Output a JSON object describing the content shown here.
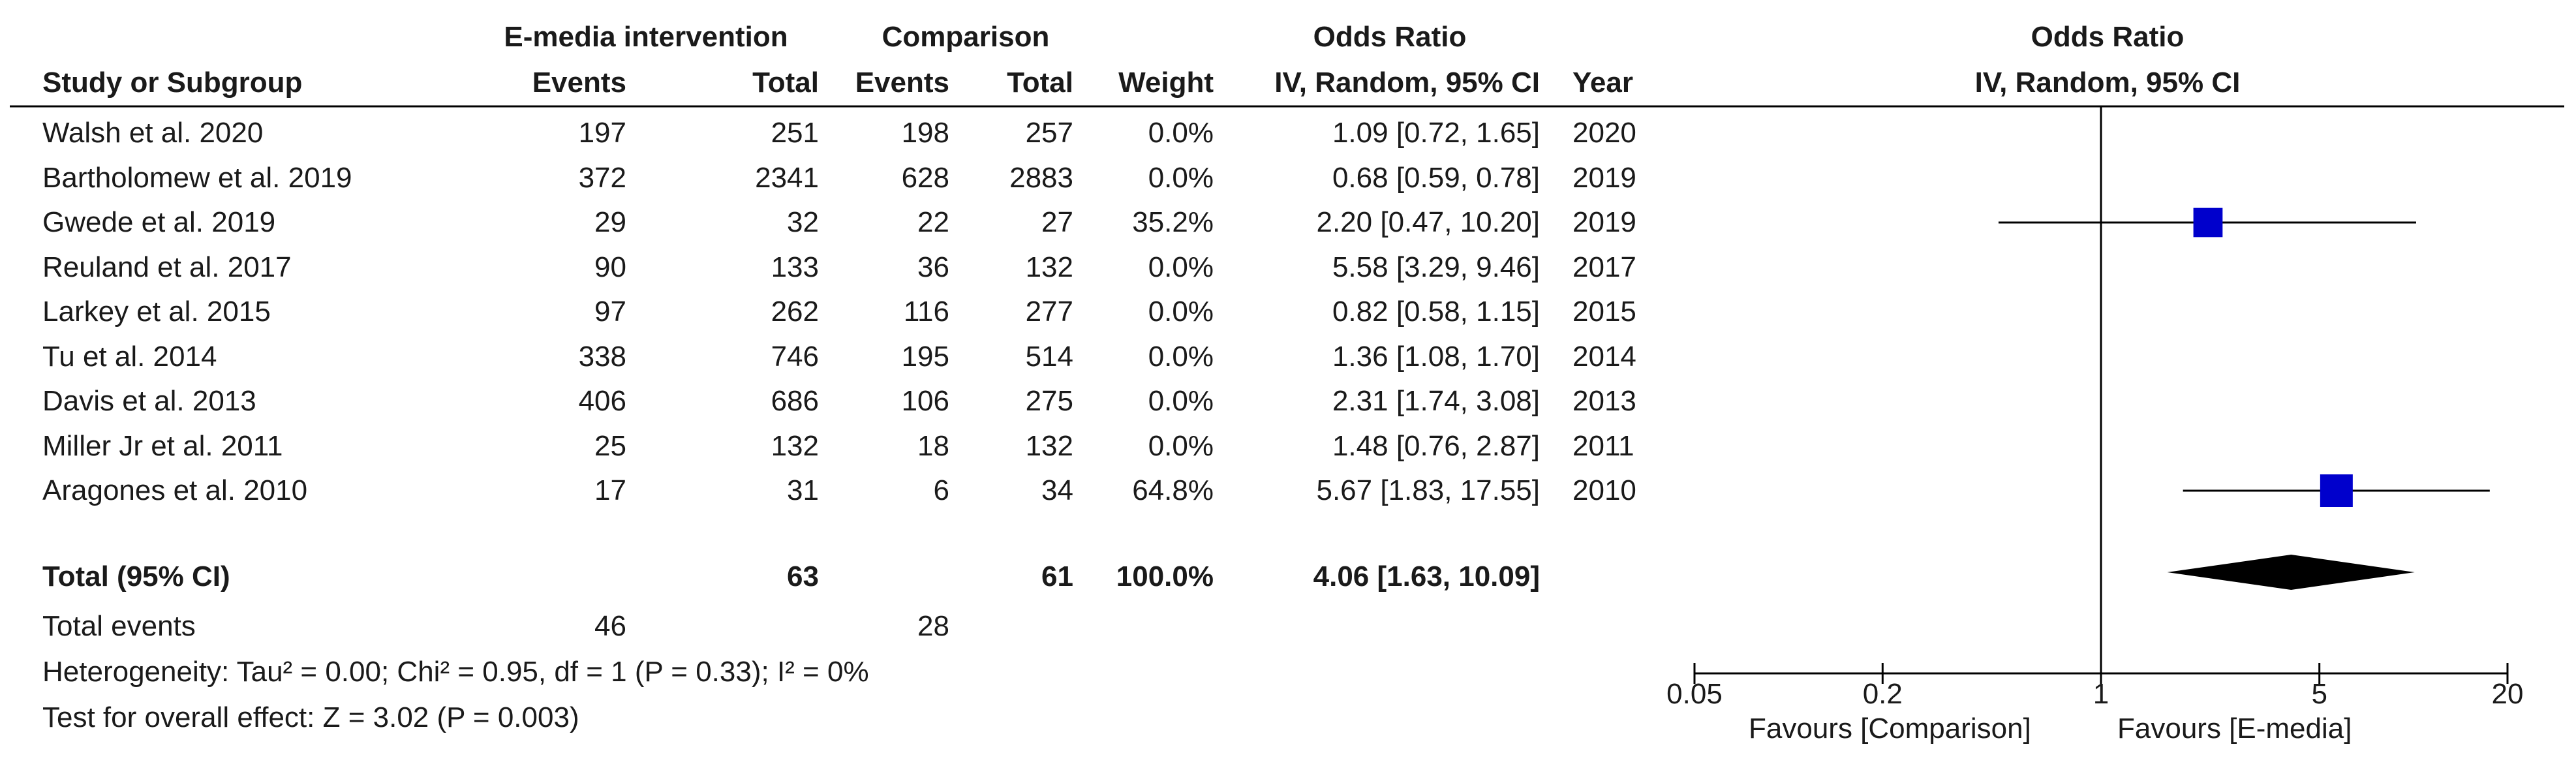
{
  "headers": {
    "group1": "E-media intervention",
    "group2": "Comparison",
    "effect_title": "Odds Ratio",
    "plot_title": "Odds Ratio",
    "study_col": "Study or Subgroup",
    "events_col": "Events",
    "total_col": "Total",
    "events2_col": "Events",
    "total2_col": "Total",
    "weight_col": "Weight",
    "method_col": "IV, Random, 95% CI",
    "year_col": "Year",
    "plot_method": "IV, Random, 95% CI"
  },
  "studies": [
    {
      "name": "Walsh et al. 2020",
      "e1": "197",
      "t1": "251",
      "e2": "198",
      "t2": "257",
      "weight": "0.0%",
      "ci": "1.09 [0.72, 1.65]",
      "year": "2020"
    },
    {
      "name": "Bartholomew et al. 2019",
      "e1": "372",
      "t1": "2341",
      "e2": "628",
      "t2": "2883",
      "weight": "0.0%",
      "ci": "0.68 [0.59, 0.78]",
      "year": "2019"
    },
    {
      "name": "Gwede et al. 2019",
      "e1": "29",
      "t1": "32",
      "e2": "22",
      "t2": "27",
      "weight": "35.2%",
      "ci": "2.20 [0.47, 10.20]",
      "year": "2019"
    },
    {
      "name": "Reuland et al. 2017",
      "e1": "90",
      "t1": "133",
      "e2": "36",
      "t2": "132",
      "weight": "0.0%",
      "ci": "5.58 [3.29, 9.46]",
      "year": "2017"
    },
    {
      "name": "Larkey et al. 2015",
      "e1": "97",
      "t1": "262",
      "e2": "116",
      "t2": "277",
      "weight": "0.0%",
      "ci": "0.82 [0.58, 1.15]",
      "year": "2015"
    },
    {
      "name": "Tu et al. 2014",
      "e1": "338",
      "t1": "746",
      "e2": "195",
      "t2": "514",
      "weight": "0.0%",
      "ci": "1.36 [1.08, 1.70]",
      "year": "2014"
    },
    {
      "name": "Davis et al. 2013",
      "e1": "406",
      "t1": "686",
      "e2": "106",
      "t2": "275",
      "weight": "0.0%",
      "ci": "2.31 [1.74, 3.08]",
      "year": "2013"
    },
    {
      "name": "Miller Jr et al. 2011",
      "e1": "25",
      "t1": "132",
      "e2": "18",
      "t2": "132",
      "weight": "0.0%",
      "ci": "1.48 [0.76, 2.87]",
      "year": "2011"
    },
    {
      "name": "Aragones et al. 2010",
      "e1": "17",
      "t1": "31",
      "e2": "6",
      "t2": "34",
      "weight": "64.8%",
      "ci": "5.67 [1.83, 17.55]",
      "year": "2010"
    }
  ],
  "total": {
    "label": "Total (95% CI)",
    "t1": "63",
    "t2": "61",
    "weight": "100.0%",
    "ci": "4.06 [1.63, 10.09]"
  },
  "total_events": {
    "label": "Total events",
    "e1": "46",
    "e2": "28"
  },
  "heterogeneity": "Heterogeneity: Tau² = 0.00; Chi² = 0.95, df = 1 (P = 0.33); I² = 0%",
  "overall_effect": "Test for overall effect: Z = 3.02 (P = 0.003)",
  "favours_left": "Favours [Comparison]",
  "favours_right": "Favours [E-media]",
  "colors": {
    "marker": "#0000cc",
    "diamond": "#000000",
    "line": "#000000"
  },
  "chart_data": {
    "type": "forest",
    "scale": "log",
    "xlim": [
      0.05,
      20
    ],
    "x_ticks": [
      "0.05",
      "0.2",
      "1",
      "5",
      "20"
    ],
    "reference_line": 1,
    "points": [
      {
        "study": "Gwede et al. 2019",
        "or": 2.2,
        "lo": 0.47,
        "hi": 10.2,
        "weight": 35.2
      },
      {
        "study": "Aragones et al. 2010",
        "or": 5.67,
        "lo": 1.83,
        "hi": 17.55,
        "weight": 64.8
      }
    ],
    "pooled": {
      "or": 4.06,
      "lo": 1.63,
      "hi": 10.09
    }
  }
}
